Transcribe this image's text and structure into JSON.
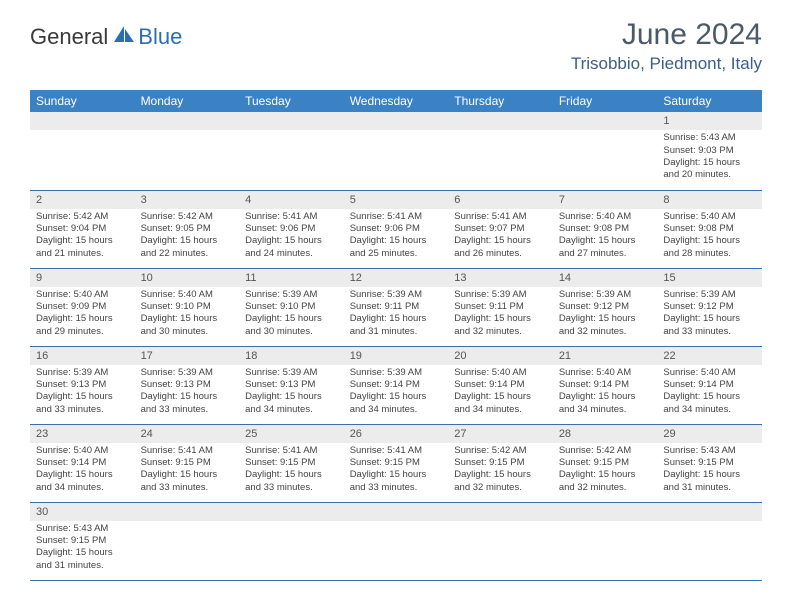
{
  "logo": {
    "text1": "General",
    "text2": "Blue"
  },
  "title": "June 2024",
  "location": "Trisobbio, Piedmont, Italy",
  "colors": {
    "header_bg": "#3b82c4",
    "header_text": "#ffffff",
    "daynum_bg": "#ececec",
    "border": "#3b6fa8",
    "title_color": "#4a5a6a",
    "location_color": "#3b5f85"
  },
  "day_headers": [
    "Sunday",
    "Monday",
    "Tuesday",
    "Wednesday",
    "Thursday",
    "Friday",
    "Saturday"
  ],
  "weeks": [
    [
      {
        "n": "",
        "blank": true
      },
      {
        "n": "",
        "blank": true
      },
      {
        "n": "",
        "blank": true
      },
      {
        "n": "",
        "blank": true
      },
      {
        "n": "",
        "blank": true
      },
      {
        "n": "",
        "blank": true
      },
      {
        "n": "1",
        "sunrise": "Sunrise: 5:43 AM",
        "sunset": "Sunset: 9:03 PM",
        "daylight": "Daylight: 15 hours and 20 minutes."
      }
    ],
    [
      {
        "n": "2",
        "sunrise": "Sunrise: 5:42 AM",
        "sunset": "Sunset: 9:04 PM",
        "daylight": "Daylight: 15 hours and 21 minutes."
      },
      {
        "n": "3",
        "sunrise": "Sunrise: 5:42 AM",
        "sunset": "Sunset: 9:05 PM",
        "daylight": "Daylight: 15 hours and 22 minutes."
      },
      {
        "n": "4",
        "sunrise": "Sunrise: 5:41 AM",
        "sunset": "Sunset: 9:06 PM",
        "daylight": "Daylight: 15 hours and 24 minutes."
      },
      {
        "n": "5",
        "sunrise": "Sunrise: 5:41 AM",
        "sunset": "Sunset: 9:06 PM",
        "daylight": "Daylight: 15 hours and 25 minutes."
      },
      {
        "n": "6",
        "sunrise": "Sunrise: 5:41 AM",
        "sunset": "Sunset: 9:07 PM",
        "daylight": "Daylight: 15 hours and 26 minutes."
      },
      {
        "n": "7",
        "sunrise": "Sunrise: 5:40 AM",
        "sunset": "Sunset: 9:08 PM",
        "daylight": "Daylight: 15 hours and 27 minutes."
      },
      {
        "n": "8",
        "sunrise": "Sunrise: 5:40 AM",
        "sunset": "Sunset: 9:08 PM",
        "daylight": "Daylight: 15 hours and 28 minutes."
      }
    ],
    [
      {
        "n": "9",
        "sunrise": "Sunrise: 5:40 AM",
        "sunset": "Sunset: 9:09 PM",
        "daylight": "Daylight: 15 hours and 29 minutes."
      },
      {
        "n": "10",
        "sunrise": "Sunrise: 5:40 AM",
        "sunset": "Sunset: 9:10 PM",
        "daylight": "Daylight: 15 hours and 30 minutes."
      },
      {
        "n": "11",
        "sunrise": "Sunrise: 5:39 AM",
        "sunset": "Sunset: 9:10 PM",
        "daylight": "Daylight: 15 hours and 30 minutes."
      },
      {
        "n": "12",
        "sunrise": "Sunrise: 5:39 AM",
        "sunset": "Sunset: 9:11 PM",
        "daylight": "Daylight: 15 hours and 31 minutes."
      },
      {
        "n": "13",
        "sunrise": "Sunrise: 5:39 AM",
        "sunset": "Sunset: 9:11 PM",
        "daylight": "Daylight: 15 hours and 32 minutes."
      },
      {
        "n": "14",
        "sunrise": "Sunrise: 5:39 AM",
        "sunset": "Sunset: 9:12 PM",
        "daylight": "Daylight: 15 hours and 32 minutes."
      },
      {
        "n": "15",
        "sunrise": "Sunrise: 5:39 AM",
        "sunset": "Sunset: 9:12 PM",
        "daylight": "Daylight: 15 hours and 33 minutes."
      }
    ],
    [
      {
        "n": "16",
        "sunrise": "Sunrise: 5:39 AM",
        "sunset": "Sunset: 9:13 PM",
        "daylight": "Daylight: 15 hours and 33 minutes."
      },
      {
        "n": "17",
        "sunrise": "Sunrise: 5:39 AM",
        "sunset": "Sunset: 9:13 PM",
        "daylight": "Daylight: 15 hours and 33 minutes."
      },
      {
        "n": "18",
        "sunrise": "Sunrise: 5:39 AM",
        "sunset": "Sunset: 9:13 PM",
        "daylight": "Daylight: 15 hours and 34 minutes."
      },
      {
        "n": "19",
        "sunrise": "Sunrise: 5:39 AM",
        "sunset": "Sunset: 9:14 PM",
        "daylight": "Daylight: 15 hours and 34 minutes."
      },
      {
        "n": "20",
        "sunrise": "Sunrise: 5:40 AM",
        "sunset": "Sunset: 9:14 PM",
        "daylight": "Daylight: 15 hours and 34 minutes."
      },
      {
        "n": "21",
        "sunrise": "Sunrise: 5:40 AM",
        "sunset": "Sunset: 9:14 PM",
        "daylight": "Daylight: 15 hours and 34 minutes."
      },
      {
        "n": "22",
        "sunrise": "Sunrise: 5:40 AM",
        "sunset": "Sunset: 9:14 PM",
        "daylight": "Daylight: 15 hours and 34 minutes."
      }
    ],
    [
      {
        "n": "23",
        "sunrise": "Sunrise: 5:40 AM",
        "sunset": "Sunset: 9:14 PM",
        "daylight": "Daylight: 15 hours and 34 minutes."
      },
      {
        "n": "24",
        "sunrise": "Sunrise: 5:41 AM",
        "sunset": "Sunset: 9:15 PM",
        "daylight": "Daylight: 15 hours and 33 minutes."
      },
      {
        "n": "25",
        "sunrise": "Sunrise: 5:41 AM",
        "sunset": "Sunset: 9:15 PM",
        "daylight": "Daylight: 15 hours and 33 minutes."
      },
      {
        "n": "26",
        "sunrise": "Sunrise: 5:41 AM",
        "sunset": "Sunset: 9:15 PM",
        "daylight": "Daylight: 15 hours and 33 minutes."
      },
      {
        "n": "27",
        "sunrise": "Sunrise: 5:42 AM",
        "sunset": "Sunset: 9:15 PM",
        "daylight": "Daylight: 15 hours and 32 minutes."
      },
      {
        "n": "28",
        "sunrise": "Sunrise: 5:42 AM",
        "sunset": "Sunset: 9:15 PM",
        "daylight": "Daylight: 15 hours and 32 minutes."
      },
      {
        "n": "29",
        "sunrise": "Sunrise: 5:43 AM",
        "sunset": "Sunset: 9:15 PM",
        "daylight": "Daylight: 15 hours and 31 minutes."
      }
    ],
    [
      {
        "n": "30",
        "sunrise": "Sunrise: 5:43 AM",
        "sunset": "Sunset: 9:15 PM",
        "daylight": "Daylight: 15 hours and 31 minutes."
      },
      {
        "n": "",
        "blank": true
      },
      {
        "n": "",
        "blank": true
      },
      {
        "n": "",
        "blank": true
      },
      {
        "n": "",
        "blank": true
      },
      {
        "n": "",
        "blank": true
      },
      {
        "n": "",
        "blank": true
      }
    ]
  ]
}
